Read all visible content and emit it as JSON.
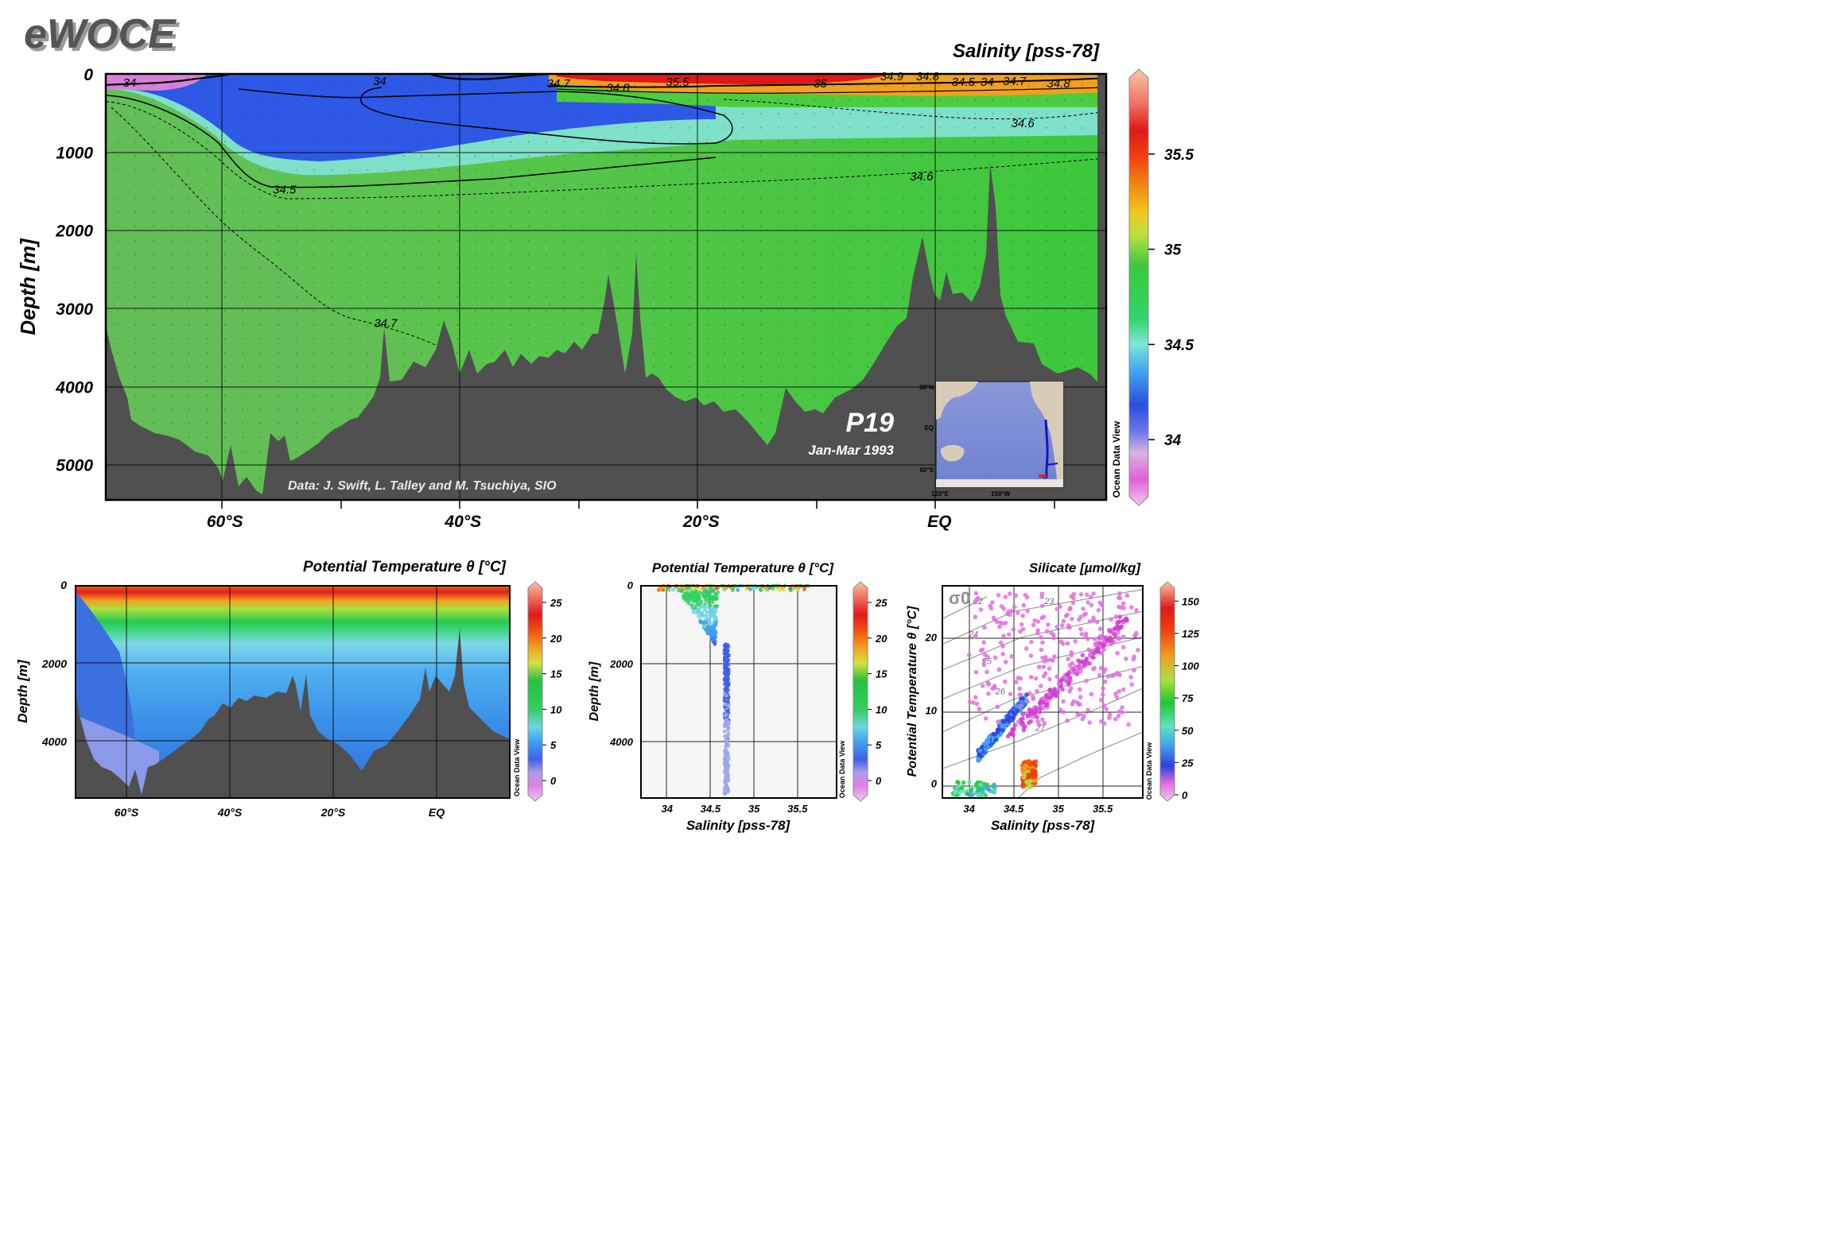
{
  "brand": "eWOCE",
  "main": {
    "title": "Salinity [pss-78]",
    "ylabel": "Depth [m]",
    "section_name": "P19",
    "period": "Jan-Mar 1993",
    "credit": "Data: J. Swift, L. Talley and M. Tsuchiya, SIO",
    "watermark": "Ocean Data View",
    "inset_map": {
      "lat_labels": [
        "60°N",
        "EQ",
        "60°S"
      ],
      "lon_labels": [
        "120°E",
        "150°W"
      ]
    }
  },
  "temperature_section": {
    "title": "Potential Temperature θ [°C]",
    "ylabel": "Depth [m]",
    "watermark": "Ocean Data View"
  },
  "temperature_scatter": {
    "title": "Potential Temperature θ [°C]",
    "ylabel": "Depth [m]",
    "xlabel": "Salinity [pss-78]",
    "watermark": "Ocean Data View"
  },
  "ts_diagram": {
    "title": "Silicate [µmol/kg]",
    "ylabel": "Potential Temperature θ [°C]",
    "xlabel": "Salinity [pss-78]",
    "sigma_label": "σ0",
    "watermark": "Ocean Data View"
  },
  "chart_data": [
    {
      "type": "heatmap",
      "id": "salinity_section",
      "title": "Salinity [pss-78]",
      "xlabel": "",
      "ylabel": "Depth [m]",
      "x_tick_labels": [
        "60°S",
        "40°S",
        "20°S",
        "EQ"
      ],
      "x_ticks_deg": [
        -60,
        -40,
        -20,
        0
      ],
      "xlim_deg": [
        -70,
        14
      ],
      "ylim": [
        5450,
        0
      ],
      "y_ticks": [
        0,
        1000,
        2000,
        3000,
        4000,
        5000
      ],
      "grid": true,
      "colorbar": {
        "range": [
          33.7,
          35.9
        ],
        "tick_labels": [
          "34",
          "34.5",
          "35",
          "35.5"
        ],
        "ticks": [
          34,
          34.5,
          35,
          35.5
        ]
      },
      "contour_labels": [
        {
          "text": "34",
          "lat": -68,
          "depth": 100
        },
        {
          "text": "34",
          "lat": -47,
          "depth": 80
        },
        {
          "text": "34.7",
          "lat": -32,
          "depth": 110
        },
        {
          "text": "34.8",
          "lat": -27,
          "depth": 170
        },
        {
          "text": "35.5",
          "lat": -22,
          "depth": 90
        },
        {
          "text": "35",
          "lat": -10,
          "depth": 110
        },
        {
          "text": "34.9",
          "lat": -4,
          "depth": 20
        },
        {
          "text": "34.8",
          "lat": -1,
          "depth": 20
        },
        {
          "text": "34.5",
          "lat": 2,
          "depth": 90
        },
        {
          "text": "34",
          "lat": 4,
          "depth": 90
        },
        {
          "text": "34.7",
          "lat": 6.3,
          "depth": 80
        },
        {
          "text": "34.8",
          "lat": 10,
          "depth": 110
        },
        {
          "text": "34.6",
          "lat": 7,
          "depth": 620
        },
        {
          "text": "34.6",
          "lat": -1.5,
          "depth": 1300
        },
        {
          "text": "34.5",
          "lat": -55,
          "depth": 1470
        },
        {
          "text": "34.7",
          "lat": -46.5,
          "depth": 3180
        }
      ]
    },
    {
      "type": "heatmap",
      "id": "temperature_section",
      "title": "Potential Temperature θ [°C]",
      "ylabel": "Depth [m]",
      "x_tick_labels": [
        "60°S",
        "40°S",
        "20°S",
        "EQ"
      ],
      "y_tick_labels": [
        "0",
        "2000",
        "4000"
      ],
      "colorbar": {
        "range": [
          -2,
          27
        ],
        "tick_labels": [
          "0",
          "5",
          "10",
          "15",
          "20",
          "25"
        ]
      }
    },
    {
      "type": "scatter",
      "id": "temperature_vs_depth_salinity",
      "title": "Potential Temperature θ [°C]",
      "xlabel": "Salinity [pss-78]",
      "ylabel": "Depth [m]",
      "x_tick_labels": [
        "34",
        "34.5",
        "35",
        "35.5"
      ],
      "y_tick_labels": [
        "0",
        "2000",
        "4000"
      ],
      "xlim": [
        33.7,
        35.95
      ],
      "ylim": [
        5450,
        0
      ],
      "colorbar": {
        "range": [
          -2,
          27
        ],
        "tick_labels": [
          "0",
          "5",
          "10",
          "15",
          "20",
          "25"
        ]
      }
    },
    {
      "type": "scatter",
      "id": "ts_diagram_silicate",
      "title": "Silicate [µmol/kg]",
      "xlabel": "Salinity [pss-78]",
      "ylabel": "Potential Temperature θ [°C]",
      "x_tick_labels": [
        "34",
        "34.5",
        "35",
        "35.5"
      ],
      "y_tick_labels": [
        "0",
        "10",
        "20"
      ],
      "xlim": [
        33.7,
        35.95
      ],
      "ylim": [
        -2,
        27
      ],
      "isopycnal_labels": [
        "22",
        "23",
        "24",
        "25",
        "26",
        "27",
        "28"
      ],
      "colorbar": {
        "range": [
          0,
          160
        ],
        "tick_labels": [
          "0",
          "25",
          "50",
          "75",
          "100",
          "125",
          "150"
        ]
      }
    }
  ]
}
